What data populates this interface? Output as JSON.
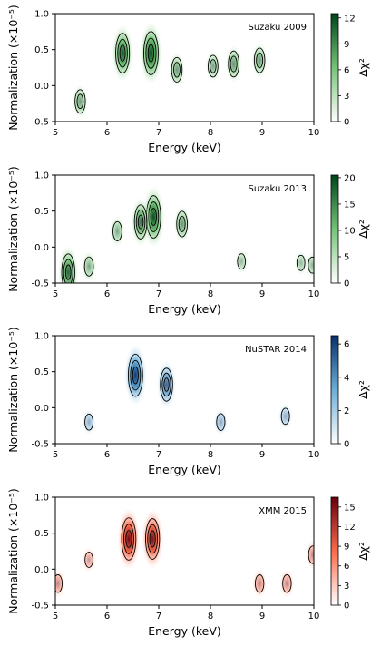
{
  "figure": {
    "x_label": "Energy (keV)",
    "y_label": "Normalization (×10⁻⁵)",
    "colorbar_label": "Δχ²",
    "x_ticks": [
      "5",
      "6",
      "7",
      "8",
      "9",
      "10"
    ],
    "y_ticks": [
      "1.0",
      "0.5",
      "0.0",
      "-0.5"
    ]
  },
  "chart_data": [
    {
      "type": "heatmap",
      "annotation": "Suzaku 2009",
      "cmap": "Greens",
      "colors": {
        "low": "#f7fcf5",
        "mid": "#74c476",
        "high": "#00441b"
      },
      "xlim": [
        5,
        10
      ],
      "ylim": [
        -0.5,
        1.0
      ],
      "colorbar_max": 12.5,
      "colorbar_ticks": [
        "0",
        "3",
        "6",
        "9",
        "12"
      ],
      "blobs": [
        {
          "x": 6.3,
          "y": 0.45,
          "value": 11
        },
        {
          "x": 6.85,
          "y": 0.45,
          "value": 12.5
        },
        {
          "x": 7.35,
          "y": 0.22,
          "value": 4.5
        },
        {
          "x": 8.05,
          "y": 0.27,
          "value": 3.2
        },
        {
          "x": 8.45,
          "y": 0.3,
          "value": 5
        },
        {
          "x": 8.95,
          "y": 0.35,
          "value": 4.5
        },
        {
          "x": 5.48,
          "y": -0.22,
          "value": 4
        }
      ]
    },
    {
      "type": "heatmap",
      "annotation": "Suzaku 2013",
      "cmap": "Greens",
      "colors": {
        "low": "#f7fcf5",
        "mid": "#74c476",
        "high": "#00441b"
      },
      "xlim": [
        5,
        10
      ],
      "ylim": [
        -0.5,
        1.0
      ],
      "colorbar_max": 20.5,
      "colorbar_ticks": [
        "0",
        "5",
        "10",
        "15",
        "20"
      ],
      "blobs": [
        {
          "x": 6.9,
          "y": 0.42,
          "value": 20
        },
        {
          "x": 6.65,
          "y": 0.35,
          "value": 14
        },
        {
          "x": 7.45,
          "y": 0.32,
          "value": 8
        },
        {
          "x": 6.2,
          "y": 0.22,
          "value": 5
        },
        {
          "x": 5.25,
          "y": -0.35,
          "value": 16
        },
        {
          "x": 5.65,
          "y": -0.27,
          "value": 5
        },
        {
          "x": 8.6,
          "y": -0.2,
          "value": 2
        },
        {
          "x": 9.75,
          "y": -0.22,
          "value": 2
        },
        {
          "x": 9.97,
          "y": -0.25,
          "value": 2.5
        }
      ]
    },
    {
      "type": "heatmap",
      "annotation": "NuSTAR 2014",
      "cmap": "Blues",
      "colors": {
        "low": "#f7fbff",
        "mid": "#6baed6",
        "high": "#08306b"
      },
      "xlim": [
        5,
        10
      ],
      "ylim": [
        -0.5,
        1.0
      ],
      "colorbar_max": 6.5,
      "colorbar_ticks": [
        "0",
        "2",
        "4",
        "6"
      ],
      "blobs": [
        {
          "x": 6.55,
          "y": 0.45,
          "value": 6.3
        },
        {
          "x": 7.15,
          "y": 0.32,
          "value": 4.2
        },
        {
          "x": 5.65,
          "y": -0.2,
          "value": 0.8
        },
        {
          "x": 8.2,
          "y": -0.2,
          "value": 1
        },
        {
          "x": 9.45,
          "y": -0.12,
          "value": 0.8
        }
      ]
    },
    {
      "type": "heatmap",
      "annotation": "XMM 2015",
      "cmap": "Reds",
      "colors": {
        "low": "#fff5f0",
        "mid": "#fb6a4a",
        "high": "#67000d"
      },
      "xlim": [
        5,
        10
      ],
      "ylim": [
        -0.5,
        1.0
      ],
      "colorbar_max": 16.5,
      "colorbar_ticks": [
        "0",
        "3",
        "6",
        "9",
        "12",
        "15"
      ],
      "blobs": [
        {
          "x": 6.42,
          "y": 0.42,
          "value": 16
        },
        {
          "x": 6.88,
          "y": 0.42,
          "value": 15
        },
        {
          "x": 5.05,
          "y": -0.2,
          "value": 3
        },
        {
          "x": 5.65,
          "y": 0.13,
          "value": 1.5
        },
        {
          "x": 8.95,
          "y": -0.2,
          "value": 3
        },
        {
          "x": 9.48,
          "y": -0.2,
          "value": 3
        },
        {
          "x": 9.98,
          "y": 0.2,
          "value": 3
        }
      ]
    }
  ]
}
